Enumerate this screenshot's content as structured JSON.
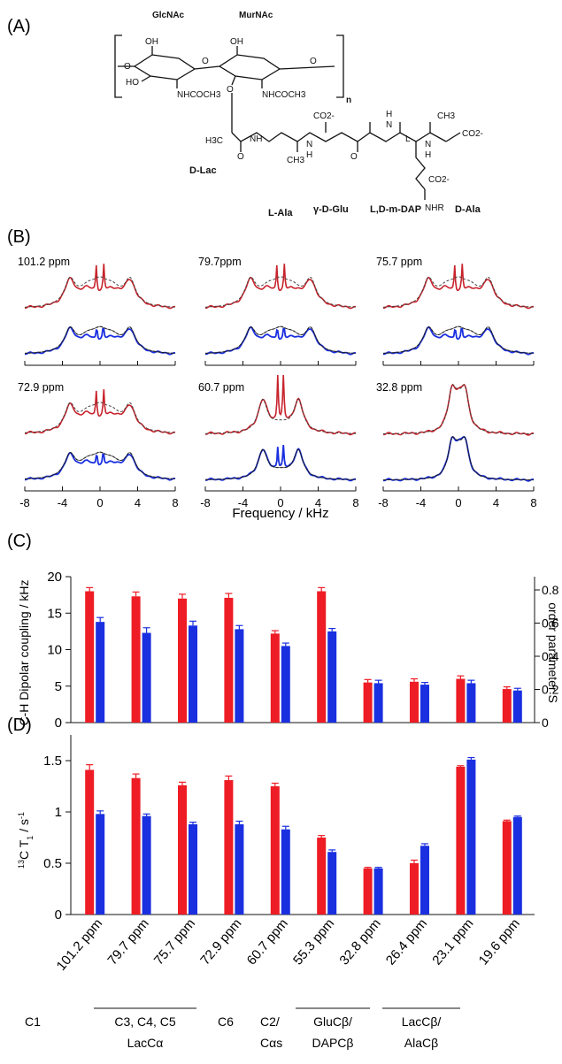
{
  "panel_labels": [
    "(A)",
    "(B)",
    "(C)",
    "(D)"
  ],
  "structure": {
    "labels": {
      "glcnac": "GlcNAc",
      "murnac": "MurNAc",
      "n": "n",
      "oh1": "OH",
      "oh2": "OH",
      "ho": "HO",
      "nhcoch3_1": "NHCOCH3",
      "nhcoch3_2": "NHCOCH3",
      "h3c": "H3C",
      "nh": "NH",
      "ch3_1": "CH3",
      "co2_1": "CO2-",
      "h1": "H",
      "h2": "H",
      "h3": "H",
      "l": "L",
      "co2_2": "CO2-",
      "ch3_2": "CH3",
      "co2_3": "CO2-",
      "nhr": "NHR",
      "d_lac": "D-Lac",
      "l_ala": "L-Ala",
      "d_glu": "γ-D-Glu",
      "dap": "L,D-m-DAP",
      "d_ala": "D-Ala",
      "o": "O",
      "n_atom": "N"
    }
  },
  "spectra": {
    "xlabel": "Frequency / kHz",
    "ticks": [
      -8,
      -4,
      0,
      4,
      8
    ],
    "panels": [
      {
        "label": "101.2 ppm",
        "type": "wide"
      },
      {
        "label": "79.7ppm",
        "type": "wide"
      },
      {
        "label": "75.7 ppm",
        "type": "wide"
      },
      {
        "label": "72.9 ppm",
        "type": "wide"
      },
      {
        "label": "60.7 ppm",
        "type": "mid"
      },
      {
        "label": "32.8 ppm",
        "type": "narrow"
      }
    ]
  },
  "chart_data": [
    {
      "type": "bar",
      "panel": "(C)",
      "ylabel": "C-H Dipolar coupling / kHz",
      "ylabel_right": "order parameter S",
      "ylim": [
        0,
        20
      ],
      "yticks": [
        0,
        5,
        10,
        15,
        20
      ],
      "ylim_right": [
        0,
        0.88
      ],
      "yticks_right": [
        0,
        0.2,
        0.4,
        0.6,
        0.8
      ],
      "categories": [
        "101.2 ppm",
        "79.7 ppm",
        "75.7 ppm",
        "72.9 ppm",
        "60.7 ppm",
        "55.3 ppm",
        "32.8 ppm",
        "26.4 ppm",
        "23.1 ppm",
        "19.6 ppm"
      ],
      "series": [
        {
          "color": "#ee1c24",
          "values": [
            18.0,
            17.3,
            17.0,
            17.1,
            12.2,
            18.0,
            5.5,
            5.6,
            6.0,
            4.6
          ],
          "errors": [
            0.5,
            0.6,
            0.6,
            0.6,
            0.4,
            0.5,
            0.4,
            0.4,
            0.4,
            0.3
          ]
        },
        {
          "color": "#1a2fe0",
          "values": [
            13.8,
            12.3,
            13.3,
            12.8,
            10.5,
            12.5,
            5.4,
            5.2,
            5.4,
            4.4
          ],
          "errors": [
            0.6,
            0.7,
            0.6,
            0.5,
            0.4,
            0.4,
            0.4,
            0.3,
            0.4,
            0.3
          ]
        }
      ]
    },
    {
      "type": "bar",
      "panel": "(D)",
      "ylabel": "13C T1 / s-1",
      "ylim": [
        0,
        1.75
      ],
      "yticks": [
        0,
        0.5,
        1,
        1.5
      ],
      "ytick_labels": [
        "0",
        "0.5",
        "1",
        "1.5"
      ],
      "categories": [
        "101.2 ppm",
        "79.7 ppm",
        "75.7 ppm",
        "72.9 ppm",
        "60.7 ppm",
        "55.3 ppm",
        "32.8 ppm",
        "26.4 ppm",
        "23.1 ppm",
        "19.6 ppm"
      ],
      "series": [
        {
          "color": "#ee1c24",
          "values": [
            1.41,
            1.33,
            1.26,
            1.31,
            1.25,
            0.75,
            0.45,
            0.5,
            1.44,
            0.91
          ],
          "errors": [
            0.05,
            0.04,
            0.03,
            0.04,
            0.03,
            0.02,
            0.01,
            0.03,
            0.01,
            0.01
          ]
        },
        {
          "color": "#1a2fe0",
          "values": [
            0.98,
            0.96,
            0.88,
            0.88,
            0.83,
            0.61,
            0.45,
            0.67,
            1.51,
            0.95
          ],
          "errors": [
            0.03,
            0.02,
            0.02,
            0.03,
            0.03,
            0.02,
            0.01,
            0.02,
            0.02,
            0.01
          ]
        }
      ]
    }
  ],
  "groups": [
    {
      "label": "C1"
    },
    {
      "label": "C3, C4, C5",
      "sublabel": "LacCα"
    },
    {
      "label": "C6"
    },
    {
      "label": "C2/",
      "sublabel": "Cαs"
    },
    {
      "label": "GluCβ/",
      "sublabel": "DAPCβ"
    },
    {
      "label": "LacCβ/",
      "sublabel": "AlaCβ"
    }
  ]
}
